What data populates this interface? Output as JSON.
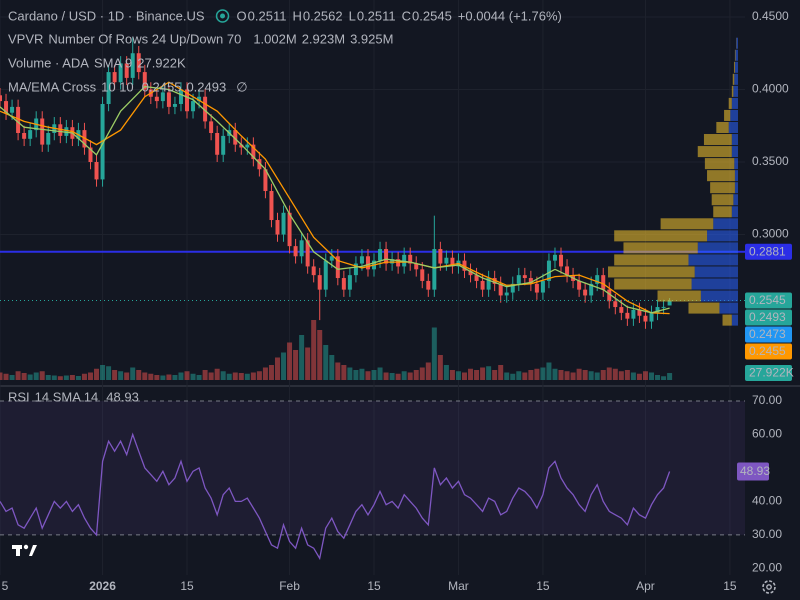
{
  "chart_data": {
    "type": "candlestick",
    "title": "Cardano / USD · 1D · Binance.US",
    "ohlc_letters": [
      "O",
      "H",
      "L",
      "C"
    ],
    "change": "+0.0044 (+1.76%)",
    "vpvr": {
      "name": "VPVR",
      "settings": "Number Of Rows 24 Up/Down 70",
      "up": "1.002M",
      "down": "2.923M",
      "total": "3.925M"
    },
    "volume_legend": {
      "name": "Volume · ADA",
      "settings": "SMA 9"
    },
    "volume_label": "27.922K",
    "ma_legend": {
      "name": "MA/EMA Cross",
      "settings": "10 10",
      "extra": "∅"
    },
    "rsi_legend": {
      "name": "RSI",
      "settings": "14 SMA 14"
    },
    "colors": {
      "up": "#26a69a",
      "down": "#ef5350",
      "sma": "#ff9800",
      "ema": "#9ccc65",
      "hline": "#2b2ee6",
      "marker": "#2196f3",
      "rsi": "#7e57c2",
      "profile_up": "rgba(41,98,255,0.55)",
      "profile_down": "rgba(230,185,45,0.6)",
      "legend_up": "#2196f3",
      "legend_down": "#f5c518"
    },
    "xlim": [
      0,
      123.5
    ],
    "xticks": [
      {
        "value": 0,
        "label": "5"
      },
      {
        "value": 17,
        "label": "2026"
      },
      {
        "value": 31,
        "label": "15"
      },
      {
        "value": 48,
        "label": "Feb"
      },
      {
        "value": 62,
        "label": "15"
      },
      {
        "value": 76,
        "label": "Mar"
      },
      {
        "value": 90,
        "label": "15"
      },
      {
        "value": 107,
        "label": "Apr"
      },
      {
        "value": 121,
        "label": "15"
      }
    ],
    "ylim": [
      0.1997,
      0.4617
    ],
    "yticks": [
      {
        "value": 0.45,
        "label": "0.4500"
      },
      {
        "value": 0.4,
        "label": "0.4000"
      },
      {
        "value": 0.35,
        "label": "0.3500"
      },
      {
        "value": 0.3,
        "label": "0.3000"
      }
    ],
    "vlim": [
      0,
      320000
    ],
    "rsi_ylim": [
      18,
      72.7
    ],
    "rsi_yticks": [
      {
        "value": 70,
        "label": "70.00"
      },
      {
        "value": 60,
        "label": "60.00"
      },
      {
        "value": 40,
        "label": "40.00"
      },
      {
        "value": 30,
        "label": "30.00"
      },
      {
        "value": 20,
        "label": "20.00"
      }
    ],
    "rsi_band": [
      30,
      70
    ],
    "hline": 0.2881,
    "marker_price": 0.2473,
    "x": [
      0,
      1,
      2,
      3,
      4,
      5,
      6,
      7,
      8,
      9,
      10,
      11,
      12,
      13,
      14,
      15,
      16,
      17,
      18,
      19,
      20,
      21,
      22,
      23,
      24,
      25,
      26,
      27,
      28,
      29,
      30,
      31,
      32,
      33,
      34,
      35,
      36,
      37,
      38,
      39,
      40,
      41,
      42,
      43,
      44,
      45,
      46,
      47,
      48,
      49,
      50,
      51,
      52,
      53,
      54,
      55,
      56,
      57,
      58,
      59,
      60,
      61,
      62,
      63,
      64,
      65,
      66,
      67,
      68,
      69,
      70,
      71,
      72,
      73,
      74,
      75,
      76,
      77,
      78,
      79,
      80,
      81,
      82,
      83,
      84,
      85,
      86,
      87,
      88,
      89,
      90,
      91,
      92,
      93,
      94,
      95,
      96,
      97,
      98,
      99,
      100,
      101,
      102,
      103,
      104,
      105,
      106,
      107,
      108,
      109,
      110,
      111
    ],
    "candles": [
      [
        0.396,
        0.401,
        0.387,
        0.392
      ],
      [
        0.392,
        0.397,
        0.379,
        0.384
      ],
      [
        0.384,
        0.393,
        0.379,
        0.388
      ],
      [
        0.388,
        0.393,
        0.365,
        0.37
      ],
      [
        0.37,
        0.375,
        0.361,
        0.366
      ],
      [
        0.366,
        0.377,
        0.361,
        0.372
      ],
      [
        0.372,
        0.385,
        0.367,
        0.38
      ],
      [
        0.38,
        0.385,
        0.357,
        0.362
      ],
      [
        0.362,
        0.375,
        0.357,
        0.37
      ],
      [
        0.37,
        0.381,
        0.365,
        0.376
      ],
      [
        0.376,
        0.381,
        0.363,
        0.368
      ],
      [
        0.368,
        0.379,
        0.363,
        0.374
      ],
      [
        0.374,
        0.379,
        0.361,
        0.366
      ],
      [
        0.366,
        0.377,
        0.361,
        0.372
      ],
      [
        0.372,
        0.377,
        0.355,
        0.36
      ],
      [
        0.36,
        0.365,
        0.345,
        0.35
      ],
      [
        0.35,
        0.355,
        0.333,
        0.338
      ],
      [
        0.338,
        0.395,
        0.333,
        0.39
      ],
      [
        0.39,
        0.417,
        0.385,
        0.412
      ],
      [
        0.412,
        0.417,
        0.4,
        0.405
      ],
      [
        0.405,
        0.423,
        0.4,
        0.418
      ],
      [
        0.418,
        0.423,
        0.403,
        0.408
      ],
      [
        0.408,
        0.436,
        0.403,
        0.425
      ],
      [
        0.425,
        0.43,
        0.407,
        0.412
      ],
      [
        0.412,
        0.417,
        0.395,
        0.4
      ],
      [
        0.4,
        0.405,
        0.39,
        0.395
      ],
      [
        0.395,
        0.4,
        0.387,
        0.392
      ],
      [
        0.392,
        0.403,
        0.387,
        0.398
      ],
      [
        0.398,
        0.403,
        0.383,
        0.388
      ],
      [
        0.388,
        0.395,
        0.383,
        0.39
      ],
      [
        0.39,
        0.405,
        0.385,
        0.4
      ],
      [
        0.4,
        0.405,
        0.38,
        0.385
      ],
      [
        0.385,
        0.397,
        0.38,
        0.392
      ],
      [
        0.392,
        0.4,
        0.387,
        0.395
      ],
      [
        0.395,
        0.4,
        0.373,
        0.378
      ],
      [
        0.378,
        0.383,
        0.365,
        0.37
      ],
      [
        0.37,
        0.375,
        0.35,
        0.355
      ],
      [
        0.355,
        0.373,
        0.35,
        0.368
      ],
      [
        0.368,
        0.377,
        0.363,
        0.372
      ],
      [
        0.372,
        0.377,
        0.357,
        0.362
      ],
      [
        0.362,
        0.367,
        0.355,
        0.36
      ],
      [
        0.36,
        0.367,
        0.355,
        0.362
      ],
      [
        0.362,
        0.367,
        0.347,
        0.352
      ],
      [
        0.352,
        0.357,
        0.34,
        0.345
      ],
      [
        0.345,
        0.35,
        0.325,
        0.33
      ],
      [
        0.33,
        0.335,
        0.305,
        0.31
      ],
      [
        0.31,
        0.315,
        0.295,
        0.3
      ],
      [
        0.3,
        0.32,
        0.295,
        0.315
      ],
      [
        0.315,
        0.32,
        0.287,
        0.292
      ],
      [
        0.292,
        0.297,
        0.28,
        0.285
      ],
      [
        0.285,
        0.301,
        0.28,
        0.296
      ],
      [
        0.296,
        0.301,
        0.273,
        0.278
      ],
      [
        0.278,
        0.283,
        0.267,
        0.272
      ],
      [
        0.272,
        0.277,
        0.241,
        0.262
      ],
      [
        0.262,
        0.287,
        0.257,
        0.282
      ],
      [
        0.282,
        0.29,
        0.277,
        0.285
      ],
      [
        0.285,
        0.29,
        0.265,
        0.27
      ],
      [
        0.27,
        0.275,
        0.257,
        0.262
      ],
      [
        0.262,
        0.277,
        0.257,
        0.272
      ],
      [
        0.272,
        0.285,
        0.267,
        0.28
      ],
      [
        0.28,
        0.29,
        0.275,
        0.285
      ],
      [
        0.285,
        0.29,
        0.271,
        0.276
      ],
      [
        0.276,
        0.287,
        0.271,
        0.282
      ],
      [
        0.282,
        0.295,
        0.277,
        0.29
      ],
      [
        0.29,
        0.295,
        0.275,
        0.28
      ],
      [
        0.28,
        0.288,
        0.275,
        0.283
      ],
      [
        0.283,
        0.288,
        0.273,
        0.278
      ],
      [
        0.278,
        0.291,
        0.273,
        0.286
      ],
      [
        0.286,
        0.291,
        0.275,
        0.28
      ],
      [
        0.28,
        0.285,
        0.271,
        0.276
      ],
      [
        0.276,
        0.281,
        0.263,
        0.268
      ],
      [
        0.268,
        0.273,
        0.257,
        0.262
      ],
      [
        0.262,
        0.313,
        0.257,
        0.29
      ],
      [
        0.29,
        0.295,
        0.275,
        0.28
      ],
      [
        0.28,
        0.289,
        0.275,
        0.284
      ],
      [
        0.284,
        0.289,
        0.273,
        0.278
      ],
      [
        0.278,
        0.287,
        0.273,
        0.282
      ],
      [
        0.282,
        0.287,
        0.27,
        0.275
      ],
      [
        0.275,
        0.28,
        0.267,
        0.272
      ],
      [
        0.272,
        0.277,
        0.263,
        0.268
      ],
      [
        0.268,
        0.273,
        0.257,
        0.262
      ],
      [
        0.262,
        0.275,
        0.257,
        0.27
      ],
      [
        0.27,
        0.275,
        0.261,
        0.266
      ],
      [
        0.266,
        0.271,
        0.253,
        0.258
      ],
      [
        0.258,
        0.265,
        0.253,
        0.26
      ],
      [
        0.26,
        0.271,
        0.255,
        0.266
      ],
      [
        0.266,
        0.277,
        0.261,
        0.272
      ],
      [
        0.272,
        0.277,
        0.265,
        0.27
      ],
      [
        0.27,
        0.275,
        0.261,
        0.266
      ],
      [
        0.266,
        0.271,
        0.255,
        0.26
      ],
      [
        0.26,
        0.273,
        0.255,
        0.268
      ],
      [
        0.268,
        0.287,
        0.263,
        0.282
      ],
      [
        0.282,
        0.291,
        0.277,
        0.286
      ],
      [
        0.286,
        0.291,
        0.273,
        0.278
      ],
      [
        0.278,
        0.283,
        0.267,
        0.272
      ],
      [
        0.272,
        0.277,
        0.263,
        0.268
      ],
      [
        0.268,
        0.273,
        0.257,
        0.262
      ],
      [
        0.262,
        0.267,
        0.253,
        0.258
      ],
      [
        0.258,
        0.271,
        0.253,
        0.266
      ],
      [
        0.266,
        0.277,
        0.261,
        0.272
      ],
      [
        0.272,
        0.277,
        0.257,
        0.262
      ],
      [
        0.262,
        0.267,
        0.249,
        0.254
      ],
      [
        0.254,
        0.259,
        0.245,
        0.25
      ],
      [
        0.25,
        0.255,
        0.241,
        0.246
      ],
      [
        0.246,
        0.251,
        0.237,
        0.242
      ],
      [
        0.242,
        0.253,
        0.237,
        0.248
      ],
      [
        0.248,
        0.253,
        0.239,
        0.244
      ],
      [
        0.244,
        0.249,
        0.235,
        0.24
      ],
      [
        0.24,
        0.251,
        0.235,
        0.246
      ],
      [
        0.246,
        0.255,
        0.241,
        0.25
      ],
      [
        0.25,
        0.255,
        0.245,
        0.2501
      ],
      [
        0.2511,
        0.2562,
        0.2511,
        0.2545
      ]
    ],
    "volume": [
      30000,
      25000,
      20000,
      35000,
      28000,
      22000,
      30000,
      35000,
      20000,
      18000,
      15000,
      18000,
      20000,
      16000,
      25000,
      30000,
      45000,
      60000,
      55000,
      40000,
      35000,
      30000,
      50000,
      40000,
      30000,
      25000,
      20000,
      18000,
      22000,
      20000,
      30000,
      35000,
      25000,
      20000,
      40000,
      30000,
      45000,
      35000,
      25000,
      30000,
      28000,
      25000,
      30000,
      35000,
      50000,
      60000,
      90000,
      110000,
      150000,
      120000,
      180000,
      130000,
      240000,
      200000,
      140000,
      100000,
      70000,
      60000,
      50000,
      40000,
      45000,
      35000,
      40000,
      50000,
      30000,
      28000,
      25000,
      35000,
      30000,
      40000,
      50000,
      70000,
      210000,
      100000,
      60000,
      40000,
      35000,
      30000,
      45000,
      40000,
      50000,
      55000,
      40000,
      60000,
      30000,
      25000,
      35000,
      30000,
      40000,
      45000,
      50000,
      70000,
      45000,
      40000,
      35000,
      30000,
      45000,
      40000,
      35000,
      30000,
      40000,
      50000,
      45000,
      35000,
      40000,
      30000,
      25000,
      35000,
      30000,
      20000,
      15000,
      27922
    ],
    "ma_x": [
      0,
      4,
      8,
      12,
      16,
      20,
      24,
      28,
      32,
      36,
      40,
      44,
      48,
      52,
      56,
      60,
      64,
      68,
      72,
      76,
      80,
      84,
      88,
      92,
      96,
      100,
      104,
      108,
      111
    ],
    "sma": [
      0.385,
      0.378,
      0.374,
      0.371,
      0.362,
      0.372,
      0.395,
      0.405,
      0.395,
      0.385,
      0.368,
      0.352,
      0.325,
      0.298,
      0.282,
      0.277,
      0.281,
      0.281,
      0.277,
      0.28,
      0.272,
      0.265,
      0.266,
      0.271,
      0.272,
      0.266,
      0.254,
      0.246,
      0.2455
    ],
    "ema": [
      0.388,
      0.374,
      0.372,
      0.37,
      0.355,
      0.385,
      0.402,
      0.4,
      0.393,
      0.378,
      0.362,
      0.345,
      0.314,
      0.288,
      0.276,
      0.278,
      0.283,
      0.281,
      0.277,
      0.279,
      0.27,
      0.264,
      0.267,
      0.276,
      0.268,
      0.262,
      0.25,
      0.246,
      0.2493
    ],
    "rsi": [
      40,
      37,
      38,
      33,
      32,
      35,
      38,
      32,
      36,
      40,
      38,
      40,
      37,
      39,
      35,
      32,
      30,
      52,
      58,
      55,
      58,
      54,
      60,
      55,
      50,
      48,
      46,
      49,
      45,
      47,
      52,
      46,
      49,
      50,
      44,
      41,
      36,
      42,
      44,
      40,
      40,
      41,
      38,
      35,
      31,
      27,
      26,
      33,
      28,
      26,
      32,
      27,
      26,
      23,
      32,
      35,
      31,
      29,
      33,
      37,
      39,
      36,
      39,
      43,
      39,
      40,
      38,
      42,
      40,
      38,
      35,
      33,
      50,
      45,
      47,
      44,
      46,
      42,
      41,
      39,
      37,
      41,
      40,
      36,
      37,
      41,
      44,
      43,
      41,
      38,
      42,
      50,
      52,
      47,
      44,
      42,
      39,
      37,
      42,
      45,
      40,
      37,
      36,
      35,
      33,
      38,
      36,
      35,
      39,
      42,
      44,
      48.93
    ],
    "profile_low": 0.2365,
    "profile_step": 0.0083,
    "profile_up": [
      20000,
      60000,
      120000,
      150000,
      140000,
      160000,
      130000,
      100000,
      80000,
      20000,
      15000,
      10000,
      10000,
      12000,
      20000,
      20000,
      30000,
      25000,
      20000,
      15000,
      12000,
      10000,
      8000,
      5000
    ],
    "profile_down": [
      30000,
      100000,
      140000,
      250000,
      280000,
      240000,
      240000,
      300000,
      170000,
      60000,
      70000,
      80000,
      90000,
      95000,
      110000,
      90000,
      40000,
      20000,
      10000,
      5000,
      5000,
      3000,
      2000,
      1000
    ]
  }
}
